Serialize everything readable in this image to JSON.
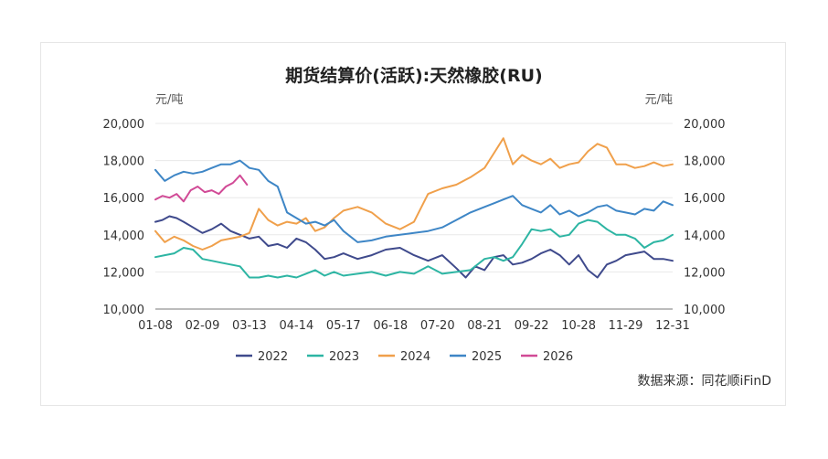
{
  "chart_data": {
    "type": "line",
    "title": "期货结算价(活跃):天然橡胶(RU)",
    "y_unit_left": "元/吨",
    "y_unit_right": "元/吨",
    "source": "数据来源：同花顺iFinD",
    "xlabel": "",
    "ylabel": "",
    "x_ticks": [
      "01-08",
      "02-09",
      "03-13",
      "04-14",
      "05-17",
      "06-18",
      "07-20",
      "08-21",
      "09-22",
      "10-28",
      "11-29",
      "12-31"
    ],
    "y_ticks": [
      "10,000",
      "12,000",
      "14,000",
      "16,000",
      "18,000",
      "20,000"
    ],
    "ylim": [
      10000,
      20000
    ],
    "xlim": [
      0,
      11
    ],
    "legend_position": "bottom",
    "series": [
      {
        "name": "2022",
        "color": "#3f4a8c",
        "x": [
          0,
          0.15,
          0.3,
          0.45,
          0.6,
          0.8,
          1,
          1.2,
          1.4,
          1.6,
          1.8,
          2,
          2.2,
          2.4,
          2.6,
          2.8,
          3,
          3.2,
          3.4,
          3.6,
          3.8,
          4,
          4.3,
          4.6,
          4.9,
          5.2,
          5.5,
          5.8,
          6.1,
          6.4,
          6.6,
          6.8,
          7,
          7.2,
          7.4,
          7.6,
          7.8,
          8,
          8.2,
          8.4,
          8.6,
          8.8,
          9,
          9.2,
          9.4,
          9.6,
          9.8,
          10,
          10.2,
          10.4,
          10.6,
          10.8,
          11
        ],
        "y": [
          14700,
          14800,
          15000,
          14900,
          14700,
          14400,
          14100,
          14300,
          14600,
          14200,
          14000,
          13800,
          13900,
          13400,
          13500,
          13300,
          13800,
          13600,
          13200,
          12700,
          12800,
          13000,
          12700,
          12900,
          13200,
          13300,
          12900,
          12600,
          12900,
          12200,
          11700,
          12300,
          12100,
          12800,
          12900,
          12400,
          12500,
          12700,
          13000,
          13200,
          12900,
          12400,
          12900,
          12100,
          11700,
          12400,
          12600,
          12900,
          13000,
          13100,
          12700,
          12700,
          12600
        ]
      },
      {
        "name": "2023",
        "color": "#2db5a3",
        "x": [
          0,
          0.2,
          0.4,
          0.6,
          0.8,
          1,
          1.2,
          1.4,
          1.6,
          1.8,
          2,
          2.2,
          2.4,
          2.6,
          2.8,
          3,
          3.2,
          3.4,
          3.6,
          3.8,
          4,
          4.3,
          4.6,
          4.9,
          5.2,
          5.5,
          5.8,
          6.1,
          6.4,
          6.7,
          7,
          7.2,
          7.4,
          7.6,
          7.8,
          8,
          8.2,
          8.4,
          8.6,
          8.8,
          9,
          9.2,
          9.4,
          9.6,
          9.8,
          10,
          10.2,
          10.4,
          10.6,
          10.8,
          11
        ],
        "y": [
          12800,
          12900,
          13000,
          13300,
          13200,
          12700,
          12600,
          12500,
          12400,
          12300,
          11700,
          11700,
          11800,
          11700,
          11800,
          11700,
          11900,
          12100,
          11800,
          12000,
          11800,
          11900,
          12000,
          11800,
          12000,
          11900,
          12300,
          11900,
          12000,
          12100,
          12700,
          12800,
          12600,
          12800,
          13500,
          14300,
          14200,
          14300,
          13900,
          14000,
          14600,
          14800,
          14700,
          14300,
          14000,
          14000,
          13800,
          13300,
          13600,
          13700,
          14000
        ]
      },
      {
        "name": "2024",
        "color": "#f0a04b",
        "x": [
          0,
          0.2,
          0.4,
          0.6,
          0.8,
          1,
          1.2,
          1.4,
          1.6,
          1.8,
          2,
          2.2,
          2.4,
          2.6,
          2.8,
          3,
          3.2,
          3.4,
          3.6,
          3.8,
          4,
          4.3,
          4.6,
          4.9,
          5.2,
          5.5,
          5.8,
          6.1,
          6.4,
          6.7,
          7,
          7.2,
          7.4,
          7.6,
          7.8,
          8,
          8.2,
          8.4,
          8.6,
          8.8,
          9,
          9.2,
          9.4,
          9.6,
          9.8,
          10,
          10.2,
          10.4,
          10.6,
          10.8,
          11
        ],
        "y": [
          14200,
          13600,
          13900,
          13700,
          13400,
          13200,
          13400,
          13700,
          13800,
          13900,
          14100,
          15400,
          14800,
          14500,
          14700,
          14600,
          14900,
          14200,
          14400,
          14900,
          15300,
          15500,
          15200,
          14600,
          14300,
          14700,
          16200,
          16500,
          16700,
          17100,
          17600,
          18400,
          19200,
          17800,
          18300,
          18000,
          17800,
          18100,
          17600,
          17800,
          17900,
          18500,
          18900,
          18700,
          17800,
          17800,
          17600,
          17700,
          17900,
          17700,
          17800
        ]
      },
      {
        "name": "2025",
        "color": "#3e86c6",
        "x": [
          0,
          0.2,
          0.4,
          0.6,
          0.8,
          1,
          1.2,
          1.4,
          1.6,
          1.8,
          2,
          2.2,
          2.4,
          2.6,
          2.8,
          3,
          3.2,
          3.4,
          3.6,
          3.8,
          4,
          4.3,
          4.6,
          4.9,
          5.2,
          5.5,
          5.8,
          6.1,
          6.4,
          6.7,
          7,
          7.2,
          7.4,
          7.6,
          7.8,
          8,
          8.2,
          8.4,
          8.6,
          8.8,
          9,
          9.2,
          9.4,
          9.6,
          9.8,
          10,
          10.2,
          10.4,
          10.6,
          10.8,
          11
        ],
        "y": [
          17500,
          16900,
          17200,
          17400,
          17300,
          17400,
          17600,
          17800,
          17800,
          18000,
          17600,
          17500,
          16900,
          16600,
          15200,
          14900,
          14600,
          14700,
          14500,
          14800,
          14200,
          13600,
          13700,
          13900,
          14000,
          14100,
          14200,
          14400,
          14800,
          15200,
          15500,
          15700,
          15900,
          16100,
          15600,
          15400,
          15200,
          15600,
          15100,
          15300,
          15000,
          15200,
          15500,
          15600,
          15300,
          15200,
          15100,
          15400,
          15300,
          15800,
          15600
        ]
      },
      {
        "name": "2026",
        "color": "#d14a96",
        "x": [
          0,
          0.15,
          0.3,
          0.45,
          0.6,
          0.75,
          0.9,
          1.05,
          1.2,
          1.35,
          1.5,
          1.65,
          1.8,
          1.95
        ],
        "y": [
          15900,
          16100,
          16000,
          16200,
          15800,
          16400,
          16600,
          16300,
          16400,
          16200,
          16600,
          16800,
          17200,
          16700
        ]
      }
    ]
  }
}
